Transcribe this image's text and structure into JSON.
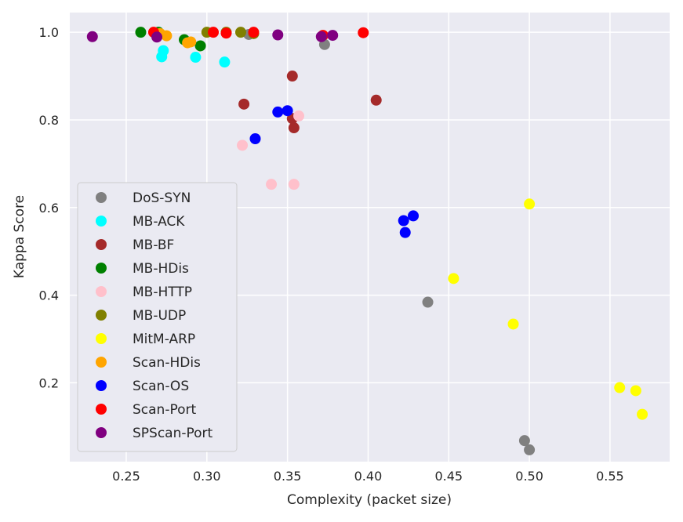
{
  "chart_data": {
    "type": "scatter",
    "title": "",
    "xlabel": "Complexity (packet size)",
    "ylabel": "Kappa Score",
    "xlim": [
      0.215,
      0.587
    ],
    "ylim": [
      0.02,
      1.045
    ],
    "xticks": [
      0.25,
      0.3,
      0.35,
      0.4,
      0.45,
      0.5,
      0.55
    ],
    "xtick_labels": [
      "0.25",
      "0.30",
      "0.35",
      "0.40",
      "0.45",
      "0.50",
      "0.55"
    ],
    "yticks": [
      0.2,
      0.4,
      0.6,
      0.8,
      1.0
    ],
    "ytick_labels": [
      "0.2",
      "0.4",
      "0.6",
      "0.8",
      "1.0"
    ],
    "grid": true,
    "legend_position": "center-left",
    "series": [
      {
        "name": "DoS-SYN",
        "color": "#808080",
        "points": [
          [
            0.326,
            0.995
          ],
          [
            0.373,
            0.972
          ],
          [
            0.437,
            0.384
          ],
          [
            0.497,
            0.068
          ],
          [
            0.5,
            0.047
          ]
        ]
      },
      {
        "name": "MB-ACK",
        "color": "#00ffff",
        "points": [
          [
            0.273,
            0.958
          ],
          [
            0.272,
            0.944
          ],
          [
            0.293,
            0.943
          ],
          [
            0.311,
            0.932
          ]
        ]
      },
      {
        "name": "MB-BF",
        "color": "#a52a2a",
        "points": [
          [
            0.353,
            0.9
          ],
          [
            0.323,
            0.836
          ],
          [
            0.353,
            0.803
          ],
          [
            0.354,
            0.782
          ],
          [
            0.405,
            0.845
          ]
        ]
      },
      {
        "name": "MB-HDis",
        "color": "#008000",
        "points": [
          [
            0.259,
            1.0
          ],
          [
            0.27,
            1.0
          ],
          [
            0.286,
            0.983
          ],
          [
            0.296,
            0.969
          ]
        ]
      },
      {
        "name": "MB-HTTP",
        "color": "#ffc0cb",
        "points": [
          [
            0.357,
            0.809
          ],
          [
            0.322,
            0.742
          ],
          [
            0.34,
            0.653
          ],
          [
            0.354,
            0.653
          ]
        ]
      },
      {
        "name": "MB-UDP",
        "color": "#808000",
        "points": [
          [
            0.3,
            1.0
          ],
          [
            0.312,
            1.0
          ],
          [
            0.321,
            1.0
          ],
          [
            0.329,
            0.997
          ]
        ]
      },
      {
        "name": "MitM-ARP",
        "color": "#ffff00",
        "points": [
          [
            0.5,
            0.608
          ],
          [
            0.453,
            0.438
          ],
          [
            0.49,
            0.334
          ],
          [
            0.556,
            0.189
          ],
          [
            0.566,
            0.182
          ],
          [
            0.57,
            0.128
          ]
        ]
      },
      {
        "name": "Scan-HDis",
        "color": "#ffa500",
        "points": [
          [
            0.271,
            0.997
          ],
          [
            0.275,
            0.992
          ],
          [
            0.288,
            0.976
          ],
          [
            0.29,
            0.978
          ]
        ]
      },
      {
        "name": "Scan-OS",
        "color": "#0000ff",
        "points": [
          [
            0.344,
            0.818
          ],
          [
            0.35,
            0.821
          ],
          [
            0.33,
            0.757
          ],
          [
            0.422,
            0.57
          ],
          [
            0.428,
            0.581
          ],
          [
            0.423,
            0.543
          ]
        ]
      },
      {
        "name": "Scan-Port",
        "color": "#ff0000",
        "points": [
          [
            0.267,
            1.0
          ],
          [
            0.304,
            1.0
          ],
          [
            0.312,
            0.998
          ],
          [
            0.329,
            1.0
          ],
          [
            0.372,
            0.993
          ],
          [
            0.397,
            0.999
          ]
        ]
      },
      {
        "name": "SPScan-Port",
        "color": "#800080",
        "points": [
          [
            0.229,
            0.99
          ],
          [
            0.269,
            0.989
          ],
          [
            0.344,
            0.994
          ],
          [
            0.371,
            0.99
          ],
          [
            0.378,
            0.993
          ]
        ]
      }
    ]
  }
}
